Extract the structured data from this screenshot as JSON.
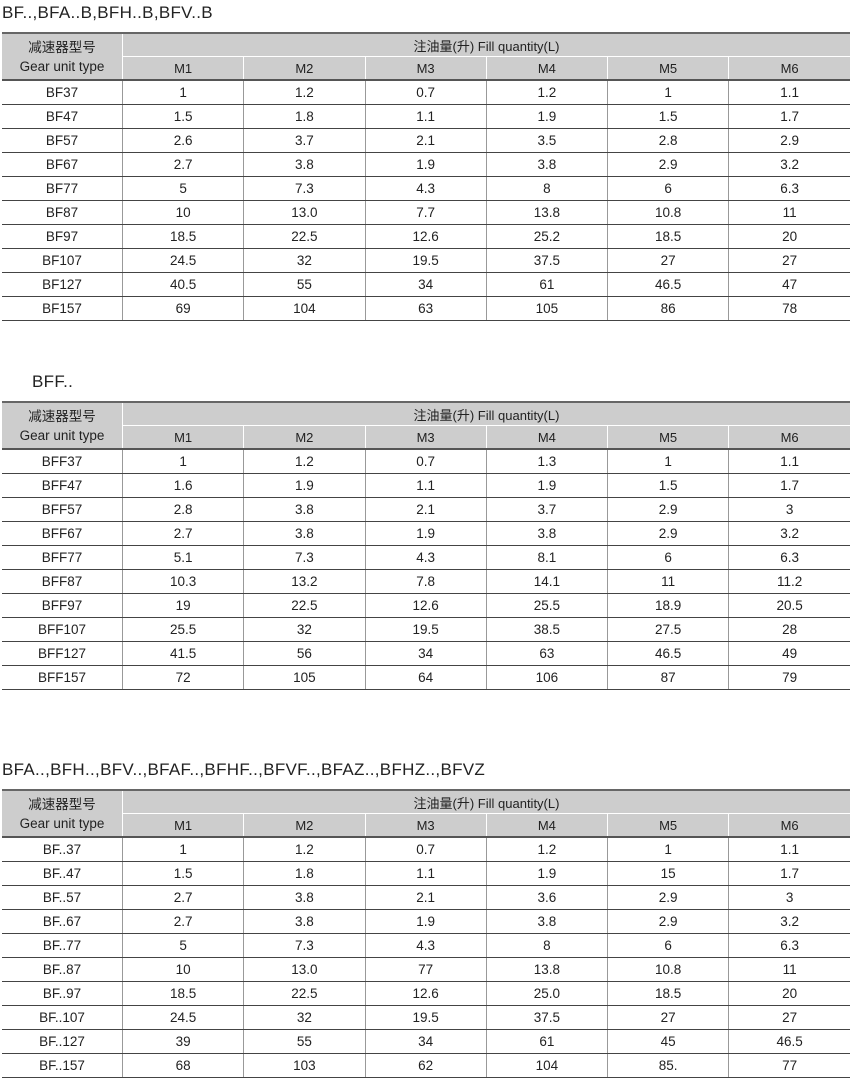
{
  "header_labels": {
    "type_cn": "减速器型号",
    "type_en": "Gear unit type",
    "fill": "注油量(升) Fill quantity(L)",
    "cols": [
      "M1",
      "M2",
      "M3",
      "M4",
      "M5",
      "M6"
    ]
  },
  "tables": [
    {
      "title": "BF..,BFA..B,BFH..B,BFV..B",
      "rows": [
        [
          "BF37",
          "1",
          "1.2",
          "0.7",
          "1.2",
          "1",
          "1.1"
        ],
        [
          "BF47",
          "1.5",
          "1.8",
          "1.1",
          "1.9",
          "1.5",
          "1.7"
        ],
        [
          "BF57",
          "2.6",
          "3.7",
          "2.1",
          "3.5",
          "2.8",
          "2.9"
        ],
        [
          "BF67",
          "2.7",
          "3.8",
          "1.9",
          "3.8",
          "2.9",
          "3.2"
        ],
        [
          "BF77",
          "5",
          "7.3",
          "4.3",
          "8",
          "6",
          "6.3"
        ],
        [
          "BF87",
          "10",
          "13.0",
          "7.7",
          "13.8",
          "10.8",
          "11"
        ],
        [
          "BF97",
          "18.5",
          "22.5",
          "12.6",
          "25.2",
          "18.5",
          "20"
        ],
        [
          "BF107",
          "24.5",
          "32",
          "19.5",
          "37.5",
          "27",
          "27"
        ],
        [
          "BF127",
          "40.5",
          "55",
          "34",
          "61",
          "46.5",
          "47"
        ],
        [
          "BF157",
          "69",
          "104",
          "63",
          "105",
          "86",
          "78"
        ]
      ]
    },
    {
      "title": "BFF..",
      "rows": [
        [
          "BFF37",
          "1",
          "1.2",
          "0.7",
          "1.3",
          "1",
          "1.1"
        ],
        [
          "BFF47",
          "1.6",
          "1.9",
          "1.1",
          "1.9",
          "1.5",
          "1.7"
        ],
        [
          "BFF57",
          "2.8",
          "3.8",
          "2.1",
          "3.7",
          "2.9",
          "3"
        ],
        [
          "BFF67",
          "2.7",
          "3.8",
          "1.9",
          "3.8",
          "2.9",
          "3.2"
        ],
        [
          "BFF77",
          "5.1",
          "7.3",
          "4.3",
          "8.1",
          "6",
          "6.3"
        ],
        [
          "BFF87",
          "10.3",
          "13.2",
          "7.8",
          "14.1",
          "11",
          "11.2"
        ],
        [
          "BFF97",
          "19",
          "22.5",
          "12.6",
          "25.5",
          "18.9",
          "20.5"
        ],
        [
          "BFF107",
          "25.5",
          "32",
          "19.5",
          "38.5",
          "27.5",
          "28"
        ],
        [
          "BFF127",
          "41.5",
          "56",
          "34",
          "63",
          "46.5",
          "49"
        ],
        [
          "BFF157",
          "72",
          "105",
          "64",
          "106",
          "87",
          "79"
        ]
      ]
    },
    {
      "title": "BFA..,BFH..,BFV..,BFAF..,BFHF..,BFVF..,BFAZ..,BFHZ..,BFVZ",
      "rows": [
        [
          "BF..37",
          "1",
          "1.2",
          "0.7",
          "1.2",
          "1",
          "1.1"
        ],
        [
          "BF..47",
          "1.5",
          "1.8",
          "1.1",
          "1.9",
          "15",
          "1.7"
        ],
        [
          "BF..57",
          "2.7",
          "3.8",
          "2.1",
          "3.6",
          "2.9",
          "3"
        ],
        [
          "BF..67",
          "2.7",
          "3.8",
          "1.9",
          "3.8",
          "2.9",
          "3.2"
        ],
        [
          "BF..77",
          "5",
          "7.3",
          "4.3",
          "8",
          "6",
          "6.3"
        ],
        [
          "BF..87",
          "10",
          "13.0",
          "77",
          "13.8",
          "10.8",
          "11"
        ],
        [
          "BF..97",
          "18.5",
          "22.5",
          "12.6",
          "25.0",
          "18.5",
          "20"
        ],
        [
          "BF..107",
          "24.5",
          "32",
          "19.5",
          "37.5",
          "27",
          "27"
        ],
        [
          "BF..127",
          "39",
          "55",
          "34",
          "61",
          "45",
          "46.5"
        ],
        [
          "BF..157",
          "68",
          "103",
          "62",
          "104",
          "85.",
          "77"
        ]
      ]
    }
  ]
}
